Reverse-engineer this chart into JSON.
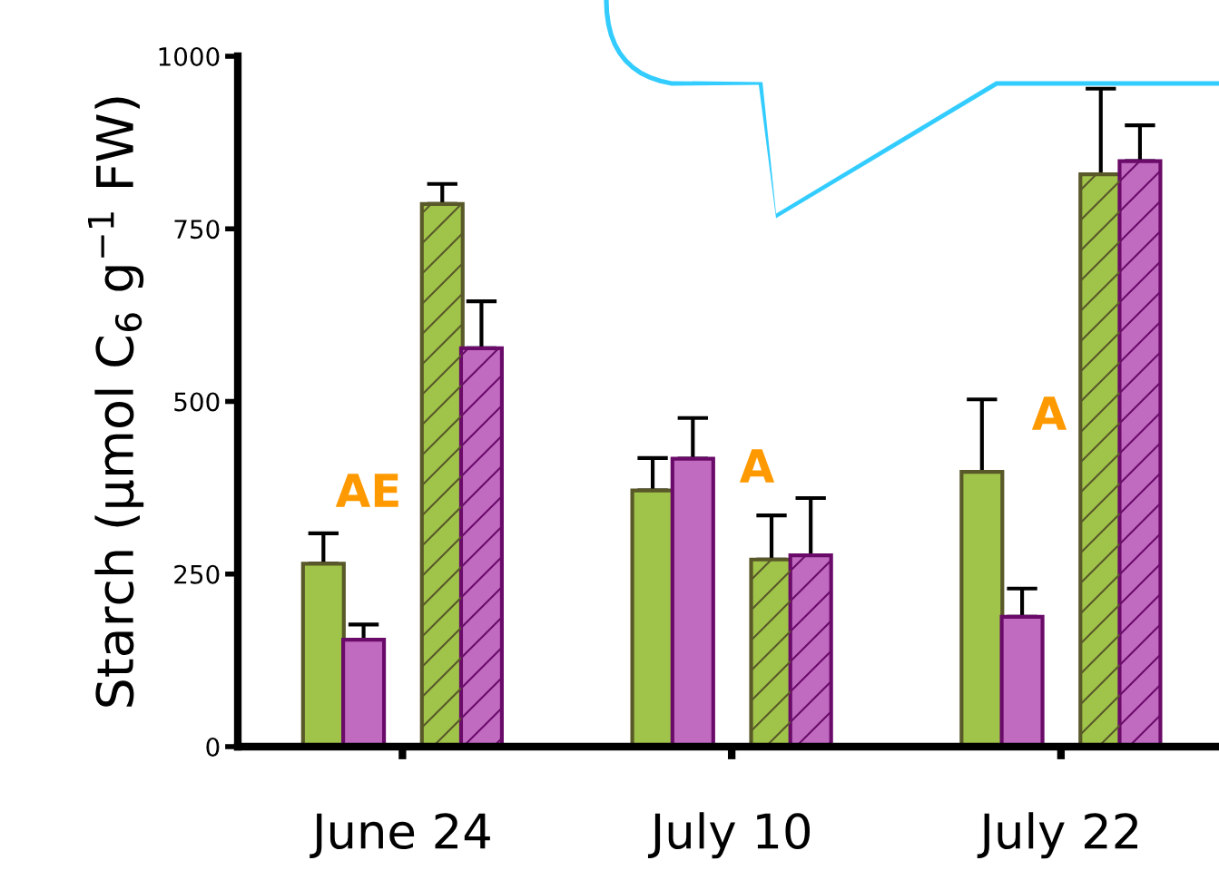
{
  "chart_data": {
    "type": "bar",
    "ylabel": "Starch (µmol C$_{6}$ g$^{−1}$ FW)",
    "categories": [
      "June 24",
      "July 10",
      "July 22"
    ],
    "series": [
      {
        "color": "#a0c44a",
        "values": [
          265,
          371,
          398
        ],
        "errors": [
          [
            265,
            309
          ],
          [
            371,
            418
          ],
          [
            398,
            503
          ]
        ]
      },
      {
        "color": "#c06ac0",
        "values": [
          155,
          417,
          188
        ],
        "errors": [
          [
            155,
            177
          ],
          [
            417,
            476
          ],
          [
            188,
            229
          ]
        ]
      },
      {
        "color": "#a0c44a",
        "values": [
          786,
          271,
          829
        ],
        "errors": [
          [
            786,
            815
          ],
          [
            271,
            335
          ],
          [
            829,
            953
          ]
        ]
      },
      {
        "color": "#c06ac0",
        "values": [
          577,
          277,
          848
        ],
        "errors": [
          [
            577,
            645
          ],
          [
            277,
            360
          ],
          [
            848,
            900
          ]
        ]
      }
    ],
    "ylim": [
      0,
      1000
    ],
    "yticks": [
      0,
      250,
      500,
      750,
      1000
    ],
    "annotations": [
      "AE",
      "A",
      "A"
    ],
    "grid": false,
    "legend": false
  }
}
